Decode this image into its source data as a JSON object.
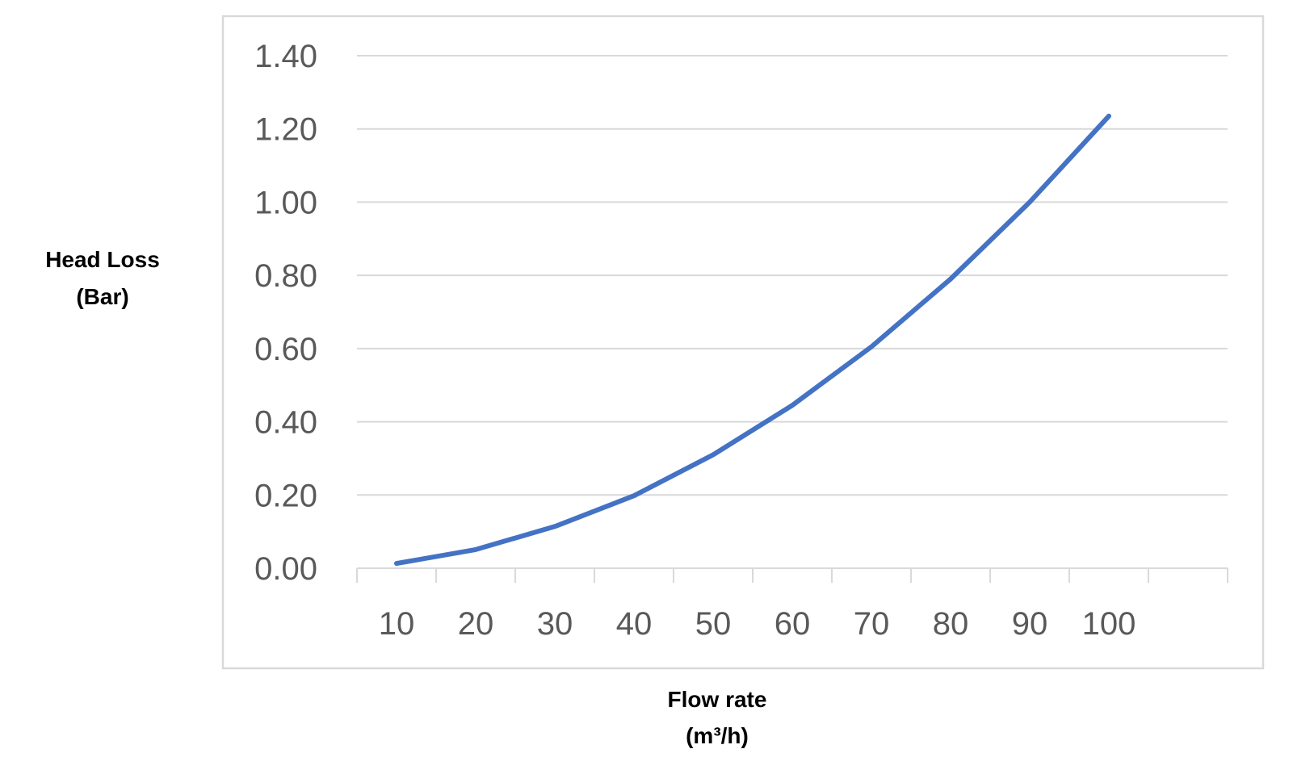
{
  "chart_data": {
    "type": "line",
    "title": "",
    "xlabel_line1": "Flow rate",
    "xlabel_line2": "(m³/h)",
    "ylabel_line1": "Head Loss",
    "ylabel_line2": "(Bar)",
    "categories": [
      "10",
      "20",
      "30",
      "40",
      "50",
      "60",
      "70",
      "80",
      "90",
      "100"
    ],
    "series": [
      {
        "color": "#4472c4",
        "values": [
          0.013,
          0.051,
          0.114,
          0.198,
          0.31,
          0.445,
          0.605,
          0.79,
          1.0,
          1.235
        ]
      }
    ],
    "ylim": [
      0,
      1.4
    ],
    "yticks": [
      "0.00",
      "0.20",
      "0.40",
      "0.60",
      "0.80",
      "1.00",
      "1.20",
      "1.40"
    ],
    "grid": "horizontal",
    "legend": "none"
  }
}
